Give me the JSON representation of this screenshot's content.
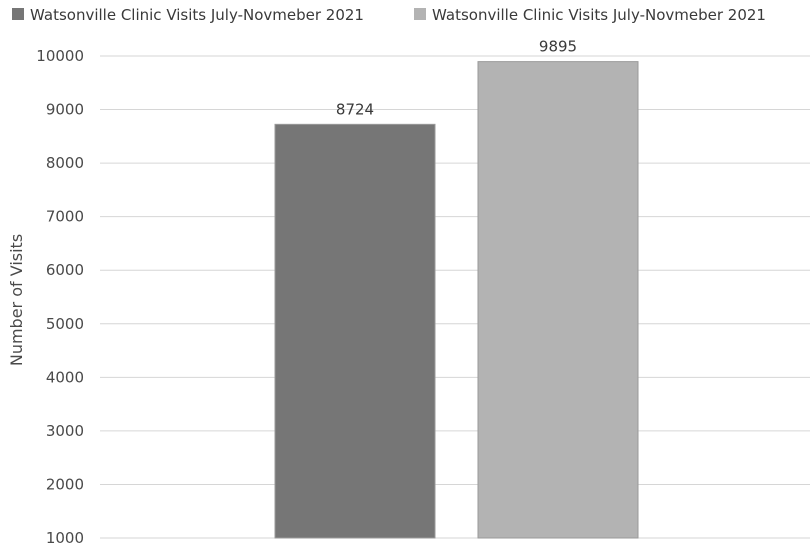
{
  "chart_data": {
    "type": "bar",
    "categories": [
      ""
    ],
    "series": [
      {
        "name": "Watsonville Clinic Visits  July-Novmeber 2021",
        "values": [
          8724
        ],
        "color": "#767676"
      },
      {
        "name": "Watsonville Clinic Visits  July-Novmeber 2021",
        "values": [
          9895
        ],
        "color": "#b3b3b3"
      }
    ],
    "title": "",
    "xlabel": "",
    "ylabel": "Number of Visits",
    "ylim": [
      1000,
      10000
    ],
    "yticks": [
      1000,
      2000,
      3000,
      4000,
      5000,
      6000,
      7000,
      8000,
      9000,
      10000
    ],
    "grid": true,
    "legend": "top"
  }
}
